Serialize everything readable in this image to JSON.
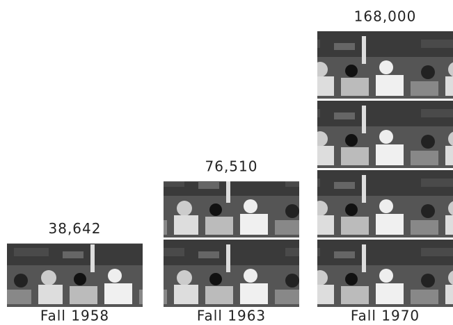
{
  "chart_data": {
    "type": "pictograph",
    "categories": [
      "Fall 1958",
      "Fall 1963",
      "Fall 1970"
    ],
    "values": [
      38642,
      76510,
      168000
    ],
    "value_labels": [
      "38,642",
      "76,510",
      "168,000"
    ]
  }
}
